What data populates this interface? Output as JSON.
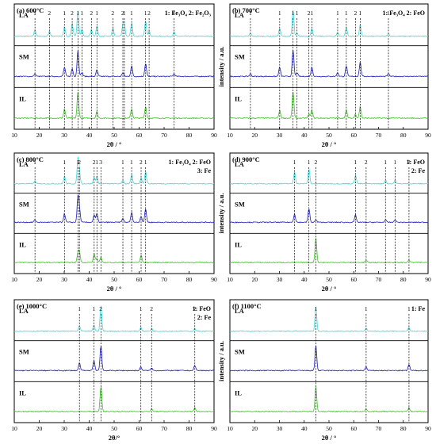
{
  "figure": {
    "xaxis_ticks": [
      10,
      20,
      30,
      40,
      50,
      60,
      70,
      80,
      90
    ],
    "trace_labels": [
      "LA",
      "SM",
      "IL"
    ],
    "trace_colors": {
      "LA": "#3fd9dc",
      "SM": "#1d1db8",
      "IL": "#3fbf28"
    },
    "axis_ylabel": "intensity / a.u."
  },
  "chart_data": [
    {
      "type": "line",
      "title": "(a) 600°C",
      "legend": [
        "1: Fe₃O₄  2: Fe₂O₃"
      ],
      "xlabel": "2θ / °",
      "ylabel": "",
      "xlim": [
        10,
        90
      ],
      "series": [
        {
          "name": "LA"
        },
        {
          "name": "SM"
        },
        {
          "name": "IL"
        }
      ],
      "peaks": [
        {
          "x": 18.3,
          "label": "1"
        },
        {
          "x": 24.1,
          "label": "2"
        },
        {
          "x": 30.1,
          "label": "1"
        },
        {
          "x": 33.2,
          "label": "2"
        },
        {
          "x": 35.5,
          "label": "1"
        },
        {
          "x": 37.1,
          "label": "1"
        },
        {
          "x": 40.9,
          "label": "2"
        },
        {
          "x": 43.1,
          "label": "1"
        },
        {
          "x": 49.5,
          "label": "2"
        },
        {
          "x": 53.5,
          "label": "2"
        },
        {
          "x": 54.1,
          "label": "1"
        },
        {
          "x": 57.0,
          "label": "1"
        },
        {
          "x": 62.6,
          "label": "1"
        },
        {
          "x": 64.0,
          "label": "2"
        },
        {
          "x": 74.0,
          "label": "1"
        }
      ]
    },
    {
      "type": "line",
      "title": "(b) 700°C",
      "legend": [
        "1: Fe₃O₄  2: FeO"
      ],
      "xlabel": "2θ / °",
      "ylabel": "intensity / a.u.",
      "xlim": [
        10,
        90
      ],
      "series": [
        {
          "name": "LA"
        },
        {
          "name": "SM"
        },
        {
          "name": "IL"
        }
      ],
      "peaks": [
        {
          "x": 18.3,
          "label": "1"
        },
        {
          "x": 30.1,
          "label": "1"
        },
        {
          "x": 35.5,
          "label": "1"
        },
        {
          "x": 37.1,
          "label": "1"
        },
        {
          "x": 43.1,
          "label": "1"
        },
        {
          "x": 53.5,
          "label": "1"
        },
        {
          "x": 57.0,
          "label": "1"
        },
        {
          "x": 62.6,
          "label": "1"
        },
        {
          "x": 74.0,
          "label": "1"
        },
        {
          "x": 41.9,
          "label": "2"
        },
        {
          "x": 60.7,
          "label": "2"
        }
      ]
    },
    {
      "type": "line",
      "title": "(c) 800°C",
      "legend": [
        "1: Fe₃O₄  2: FeO",
        "3: Fe"
      ],
      "xlabel": "2θ / °",
      "ylabel": "",
      "xlim": [
        10,
        90
      ],
      "series": [
        {
          "name": "LA"
        },
        {
          "name": "SM"
        },
        {
          "name": "IL"
        }
      ],
      "peaks": [
        {
          "x": 18.3,
          "label": "1"
        },
        {
          "x": 30.1,
          "label": "1"
        },
        {
          "x": 35.5,
          "label": "1"
        },
        {
          "x": 36.1,
          "label": "2"
        },
        {
          "x": 42.0,
          "label": "2"
        },
        {
          "x": 43.1,
          "label": "1"
        },
        {
          "x": 44.7,
          "label": "3"
        },
        {
          "x": 53.5,
          "label": "1"
        },
        {
          "x": 57.0,
          "label": "1"
        },
        {
          "x": 60.8,
          "label": "2"
        },
        {
          "x": 62.6,
          "label": "1"
        }
      ]
    },
    {
      "type": "line",
      "title": "(d) 900°C",
      "legend": [
        "1: FeO",
        "2: Fe"
      ],
      "xlabel": "2θ / °",
      "ylabel": "intensity / a.u.",
      "xlim": [
        10,
        90
      ],
      "series": [
        {
          "name": "LA"
        },
        {
          "name": "SM"
        },
        {
          "name": "IL"
        }
      ],
      "peaks": [
        {
          "x": 36.1,
          "label": "1"
        },
        {
          "x": 41.9,
          "label": "1"
        },
        {
          "x": 44.7,
          "label": "2"
        },
        {
          "x": 60.7,
          "label": "1"
        },
        {
          "x": 65.0,
          "label": "2"
        },
        {
          "x": 72.8,
          "label": "1"
        },
        {
          "x": 76.7,
          "label": "1"
        },
        {
          "x": 82.3,
          "label": "2"
        }
      ]
    },
    {
      "type": "line",
      "title": "(e) 1000°C",
      "legend": [
        "1: FeO",
        "2: Fe"
      ],
      "xlabel": "2θ/°",
      "ylabel": "",
      "xlim": [
        10,
        90
      ],
      "series": [
        {
          "name": "LA"
        },
        {
          "name": "SM"
        },
        {
          "name": "IL"
        }
      ],
      "peaks": [
        {
          "x": 36.1,
          "label": "1"
        },
        {
          "x": 41.9,
          "label": "1"
        },
        {
          "x": 44.7,
          "label": "2"
        },
        {
          "x": 60.7,
          "label": "1"
        },
        {
          "x": 65.0,
          "label": "2"
        },
        {
          "x": 82.3,
          "label": "2"
        }
      ]
    },
    {
      "type": "line",
      "title": "(f) 1100°C",
      "legend": [
        "1: Fe"
      ],
      "xlabel": "2θ / °",
      "ylabel": "intensity / a.u.",
      "xlim": [
        10,
        90
      ],
      "series": [
        {
          "name": "LA"
        },
        {
          "name": "SM"
        },
        {
          "name": "IL"
        }
      ],
      "peaks": [
        {
          "x": 44.7,
          "label": "1"
        },
        {
          "x": 65.0,
          "label": "1"
        },
        {
          "x": 82.3,
          "label": "1"
        }
      ]
    }
  ]
}
